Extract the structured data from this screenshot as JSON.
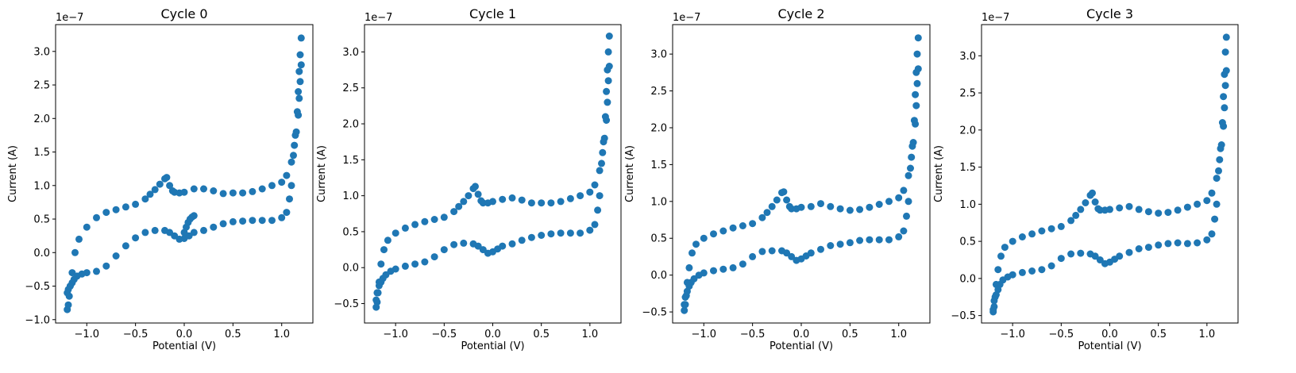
{
  "chart_data": [
    {
      "type": "scatter",
      "title": "Cycle 0",
      "xlabel": "Potential (V)",
      "ylabel": "Current (A)",
      "y_offset_label": "1e−7",
      "xlim": [
        -1.32,
        1.32
      ],
      "ylim": [
        -1.05,
        3.4
      ],
      "xticks": [
        -1.0,
        -0.5,
        0.0,
        0.5,
        1.0
      ],
      "xtick_labels": [
        "−1.0",
        "−0.5",
        "0.0",
        "0.5",
        "1.0"
      ],
      "yticks": [
        -1.0,
        -0.5,
        0.0,
        0.5,
        1.0,
        1.5,
        2.0,
        2.5,
        3.0
      ],
      "ytick_labels": [
        "−1.0",
        "−0.5",
        "0.0",
        "0.5",
        "1.0",
        "1.5",
        "2.0",
        "2.5",
        "3.0"
      ],
      "color": "#1f77b4",
      "series": [
        {
          "x": [
            -1.2,
            -1.19,
            -1.18,
            -1.17,
            -1.15,
            -1.12,
            -1.08,
            -1.0,
            -0.9,
            -0.8,
            -0.7,
            -0.6,
            -0.5,
            -0.4,
            -0.35,
            -0.3,
            -0.25,
            -0.2,
            -0.18,
            -0.15,
            -0.12,
            -0.1,
            -0.05,
            0.0,
            0.1,
            0.2,
            0.3,
            0.4,
            0.5,
            0.6,
            0.7,
            0.8,
            0.9,
            1.0,
            1.05,
            1.1,
            1.13,
            1.15,
            1.17,
            1.18,
            1.19,
            1.2,
            1.2,
            1.19,
            1.18,
            1.17,
            1.16,
            1.14,
            1.12,
            1.1,
            1.08,
            1.05,
            1.0,
            0.9,
            0.8,
            0.7,
            0.6,
            0.5,
            0.4,
            0.3,
            0.2,
            0.1,
            0.05,
            0.0,
            -0.05,
            -0.1,
            -0.15,
            -0.2,
            -0.3,
            -0.4,
            -0.5,
            -0.6,
            -0.7,
            -0.8,
            -0.9,
            -1.0,
            -1.05,
            -1.1,
            -1.13,
            -1.15,
            -1.17,
            -1.19,
            -1.2,
            -0.0,
            0.02,
            0.04,
            0.06,
            0.08,
            0.1
          ],
          "y": [
            -0.85,
            -0.78,
            -0.65,
            -0.5,
            -0.3,
            0.0,
            0.2,
            0.38,
            0.52,
            0.6,
            0.64,
            0.68,
            0.72,
            0.8,
            0.87,
            0.94,
            1.02,
            1.1,
            1.12,
            1.0,
            0.92,
            0.9,
            0.89,
            0.9,
            0.95,
            0.95,
            0.92,
            0.88,
            0.89,
            0.89,
            0.91,
            0.95,
            1.0,
            1.05,
            1.15,
            1.35,
            1.6,
            1.8,
            2.05,
            2.3,
            2.55,
            2.8,
            3.2,
            2.95,
            2.7,
            2.4,
            2.1,
            1.75,
            1.45,
            1.0,
            0.8,
            0.6,
            0.52,
            0.48,
            0.48,
            0.48,
            0.47,
            0.46,
            0.43,
            0.38,
            0.33,
            0.3,
            0.25,
            0.21,
            0.2,
            0.25,
            0.3,
            0.33,
            0.33,
            0.3,
            0.22,
            0.1,
            -0.05,
            -0.2,
            -0.28,
            -0.3,
            -0.32,
            -0.35,
            -0.4,
            -0.45,
            -0.5,
            -0.55,
            -0.6,
            0.3,
            0.38,
            0.45,
            0.5,
            0.53,
            0.55
          ]
        }
      ]
    },
    {
      "type": "scatter",
      "title": "Cycle 1",
      "xlabel": "Potential (V)",
      "ylabel": "Current (A)",
      "y_offset_label": "1e−7",
      "xlim": [
        -1.32,
        1.32
      ],
      "ylim": [
        -0.77,
        3.38
      ],
      "xticks": [
        -1.0,
        -0.5,
        0.0,
        0.5,
        1.0
      ],
      "xtick_labels": [
        "−1.0",
        "−0.5",
        "0.0",
        "0.5",
        "1.0"
      ],
      "yticks": [
        -0.5,
        0.0,
        0.5,
        1.0,
        1.5,
        2.0,
        2.5,
        3.0
      ],
      "ytick_labels": [
        "−0.5",
        "0.0",
        "0.5",
        "1.0",
        "1.5",
        "2.0",
        "2.5",
        "3.0"
      ],
      "color": "#1f77b4",
      "series": [
        {
          "x": [
            -1.2,
            -1.19,
            -1.18,
            -1.17,
            -1.15,
            -1.12,
            -1.08,
            -1.0,
            -0.9,
            -0.8,
            -0.7,
            -0.6,
            -0.5,
            -0.4,
            -0.35,
            -0.3,
            -0.25,
            -0.2,
            -0.18,
            -0.15,
            -0.12,
            -0.1,
            -0.05,
            0.0,
            0.1,
            0.2,
            0.3,
            0.4,
            0.5,
            0.6,
            0.7,
            0.8,
            0.9,
            1.0,
            1.05,
            1.1,
            1.13,
            1.15,
            1.17,
            1.18,
            1.19,
            1.2,
            1.2,
            1.19,
            1.18,
            1.17,
            1.16,
            1.14,
            1.12,
            1.1,
            1.08,
            1.05,
            1.0,
            0.9,
            0.8,
            0.7,
            0.6,
            0.5,
            0.4,
            0.3,
            0.2,
            0.1,
            0.05,
            0.0,
            -0.05,
            -0.1,
            -0.15,
            -0.2,
            -0.3,
            -0.4,
            -0.5,
            -0.6,
            -0.7,
            -0.8,
            -0.9,
            -1.0,
            -1.05,
            -1.1,
            -1.13,
            -1.15,
            -1.17,
            -1.19,
            -1.2
          ],
          "y": [
            -0.55,
            -0.48,
            -0.35,
            -0.2,
            0.05,
            0.25,
            0.38,
            0.48,
            0.55,
            0.6,
            0.64,
            0.67,
            0.7,
            0.78,
            0.85,
            0.92,
            1.0,
            1.1,
            1.13,
            1.02,
            0.93,
            0.9,
            0.9,
            0.92,
            0.95,
            0.97,
            0.94,
            0.9,
            0.9,
            0.9,
            0.92,
            0.96,
            1.0,
            1.05,
            1.15,
            1.35,
            1.6,
            1.8,
            2.05,
            2.3,
            2.6,
            2.8,
            3.22,
            3.0,
            2.75,
            2.45,
            2.1,
            1.75,
            1.45,
            1.0,
            0.8,
            0.6,
            0.52,
            0.48,
            0.48,
            0.48,
            0.47,
            0.45,
            0.42,
            0.38,
            0.33,
            0.3,
            0.26,
            0.22,
            0.2,
            0.25,
            0.3,
            0.33,
            0.34,
            0.32,
            0.25,
            0.15,
            0.08,
            0.05,
            0.02,
            -0.02,
            -0.05,
            -0.1,
            -0.15,
            -0.2,
            -0.25,
            -0.35,
            -0.45
          ]
        }
      ]
    },
    {
      "type": "scatter",
      "title": "Cycle 2",
      "xlabel": "Potential (V)",
      "ylabel": "Current (A)",
      "y_offset_label": "1e−7",
      "xlim": [
        -1.32,
        1.32
      ],
      "ylim": [
        -0.65,
        3.4
      ],
      "xticks": [
        -1.0,
        -0.5,
        0.0,
        0.5,
        1.0
      ],
      "xtick_labels": [
        "−1.0",
        "−0.5",
        "0.0",
        "0.5",
        "1.0"
      ],
      "yticks": [
        -0.5,
        0.0,
        0.5,
        1.0,
        1.5,
        2.0,
        2.5,
        3.0
      ],
      "ytick_labels": [
        "−0.5",
        "0.0",
        "0.5",
        "1.0",
        "1.5",
        "2.0",
        "2.5",
        "3.0"
      ],
      "color": "#1f77b4",
      "series": [
        {
          "x": [
            -1.2,
            -1.19,
            -1.18,
            -1.17,
            -1.15,
            -1.12,
            -1.08,
            -1.0,
            -0.9,
            -0.8,
            -0.7,
            -0.6,
            -0.5,
            -0.4,
            -0.35,
            -0.3,
            -0.25,
            -0.2,
            -0.18,
            -0.15,
            -0.12,
            -0.1,
            -0.05,
            0.0,
            0.1,
            0.2,
            0.3,
            0.4,
            0.5,
            0.6,
            0.7,
            0.8,
            0.9,
            1.0,
            1.05,
            1.1,
            1.13,
            1.15,
            1.17,
            1.18,
            1.19,
            1.2,
            1.2,
            1.19,
            1.18,
            1.17,
            1.16,
            1.14,
            1.12,
            1.1,
            1.08,
            1.05,
            1.0,
            0.9,
            0.8,
            0.7,
            0.6,
            0.5,
            0.4,
            0.3,
            0.2,
            0.1,
            0.05,
            0.0,
            -0.05,
            -0.1,
            -0.15,
            -0.2,
            -0.3,
            -0.4,
            -0.5,
            -0.6,
            -0.7,
            -0.8,
            -0.9,
            -1.0,
            -1.05,
            -1.1,
            -1.13,
            -1.15,
            -1.17,
            -1.19,
            -1.2
          ],
          "y": [
            -0.48,
            -0.4,
            -0.28,
            -0.1,
            0.1,
            0.3,
            0.42,
            0.5,
            0.56,
            0.6,
            0.64,
            0.67,
            0.7,
            0.78,
            0.85,
            0.93,
            1.02,
            1.12,
            1.13,
            1.02,
            0.93,
            0.9,
            0.9,
            0.92,
            0.93,
            0.97,
            0.93,
            0.9,
            0.88,
            0.89,
            0.92,
            0.96,
            1.0,
            1.05,
            1.15,
            1.35,
            1.6,
            1.8,
            2.05,
            2.3,
            2.6,
            2.8,
            3.22,
            3.0,
            2.75,
            2.45,
            2.1,
            1.75,
            1.45,
            1.0,
            0.8,
            0.6,
            0.52,
            0.48,
            0.48,
            0.48,
            0.47,
            0.44,
            0.42,
            0.4,
            0.35,
            0.3,
            0.26,
            0.22,
            0.2,
            0.25,
            0.3,
            0.33,
            0.33,
            0.32,
            0.25,
            0.15,
            0.1,
            0.08,
            0.06,
            0.03,
            0.0,
            -0.05,
            -0.1,
            -0.15,
            -0.22,
            -0.3,
            -0.4
          ]
        }
      ]
    },
    {
      "type": "scatter",
      "title": "Cycle 3",
      "xlabel": "Potential (V)",
      "ylabel": "Current (A)",
      "y_offset_label": "1e−7",
      "xlim": [
        -1.32,
        1.32
      ],
      "ylim": [
        -0.6,
        3.42
      ],
      "xticks": [
        -1.0,
        -0.5,
        0.0,
        0.5,
        1.0
      ],
      "xtick_labels": [
        "−1.0",
        "−0.5",
        "0.0",
        "0.5",
        "1.0"
      ],
      "yticks": [
        -0.5,
        0.0,
        0.5,
        1.0,
        1.5,
        2.0,
        2.5,
        3.0
      ],
      "ytick_labels": [
        "−0.5",
        "0.0",
        "0.5",
        "1.0",
        "1.5",
        "2.0",
        "2.5",
        "3.0"
      ],
      "color": "#1f77b4",
      "series": [
        {
          "x": [
            -1.2,
            -1.19,
            -1.18,
            -1.17,
            -1.15,
            -1.12,
            -1.08,
            -1.0,
            -0.9,
            -0.8,
            -0.7,
            -0.6,
            -0.5,
            -0.4,
            -0.35,
            -0.3,
            -0.25,
            -0.2,
            -0.18,
            -0.15,
            -0.12,
            -0.1,
            -0.05,
            0.0,
            0.1,
            0.2,
            0.3,
            0.4,
            0.5,
            0.6,
            0.7,
            0.8,
            0.9,
            1.0,
            1.05,
            1.1,
            1.13,
            1.15,
            1.17,
            1.18,
            1.19,
            1.2,
            1.2,
            1.19,
            1.18,
            1.17,
            1.16,
            1.14,
            1.12,
            1.1,
            1.08,
            1.05,
            1.0,
            0.9,
            0.8,
            0.7,
            0.6,
            0.5,
            0.4,
            0.3,
            0.2,
            0.1,
            0.05,
            0.0,
            -0.05,
            -0.1,
            -0.15,
            -0.2,
            -0.3,
            -0.4,
            -0.5,
            -0.6,
            -0.7,
            -0.8,
            -0.9,
            -1.0,
            -1.05,
            -1.1,
            -1.13,
            -1.15,
            -1.17,
            -1.19,
            -1.2
          ],
          "y": [
            -0.45,
            -0.38,
            -0.25,
            -0.08,
            0.12,
            0.3,
            0.42,
            0.5,
            0.56,
            0.6,
            0.64,
            0.67,
            0.7,
            0.78,
            0.85,
            0.93,
            1.02,
            1.12,
            1.15,
            1.03,
            0.94,
            0.92,
            0.92,
            0.93,
            0.95,
            0.97,
            0.93,
            0.9,
            0.88,
            0.89,
            0.92,
            0.96,
            1.0,
            1.05,
            1.15,
            1.35,
            1.6,
            1.8,
            2.05,
            2.3,
            2.6,
            2.8,
            3.25,
            3.05,
            2.75,
            2.45,
            2.1,
            1.75,
            1.45,
            1.0,
            0.8,
            0.6,
            0.52,
            0.48,
            0.47,
            0.48,
            0.47,
            0.45,
            0.42,
            0.4,
            0.35,
            0.3,
            0.26,
            0.22,
            0.2,
            0.25,
            0.3,
            0.33,
            0.34,
            0.33,
            0.27,
            0.17,
            0.12,
            0.1,
            0.08,
            0.05,
            0.02,
            -0.02,
            -0.08,
            -0.15,
            -0.22,
            -0.3,
            -0.42
          ]
        }
      ]
    }
  ]
}
